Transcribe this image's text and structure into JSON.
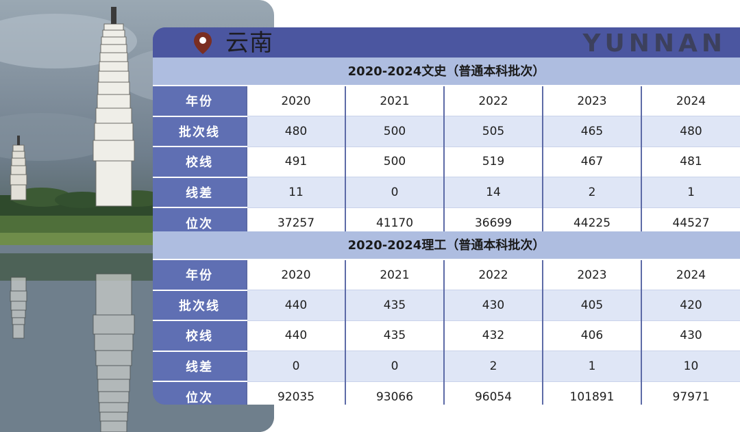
{
  "header": {
    "province": "云南",
    "province_en": "YUNNAN"
  },
  "icons": {
    "location": "location-pin-icon"
  },
  "sections": [
    {
      "title": "2020-2024文史（普通本科批次）",
      "rows": [
        {
          "label": "年份",
          "values": [
            "2020",
            "2021",
            "2022",
            "2023",
            "2024"
          ]
        },
        {
          "label": "批次线",
          "values": [
            "480",
            "500",
            "505",
            "465",
            "480"
          ]
        },
        {
          "label": "校线",
          "values": [
            "491",
            "500",
            "519",
            "467",
            "481"
          ]
        },
        {
          "label": "线差",
          "values": [
            "11",
            "0",
            "14",
            "2",
            "1"
          ]
        },
        {
          "label": "位次",
          "values": [
            "37257",
            "41170",
            "36699",
            "44225",
            "44527"
          ]
        }
      ]
    },
    {
      "title": "2020-2024理工（普通本科批次）",
      "rows": [
        {
          "label": "年份",
          "values": [
            "2020",
            "2021",
            "2022",
            "2023",
            "2024"
          ]
        },
        {
          "label": "批次线",
          "values": [
            "440",
            "435",
            "430",
            "405",
            "420"
          ]
        },
        {
          "label": "校线",
          "values": [
            "440",
            "435",
            "432",
            "406",
            "430"
          ]
        },
        {
          "label": "线差",
          "values": [
            "0",
            "0",
            "2",
            "1",
            "10"
          ]
        },
        {
          "label": "位次",
          "values": [
            "92035",
            "93066",
            "96054",
            "101891",
            "97971"
          ]
        }
      ]
    }
  ],
  "colors": {
    "header_bg": "#4b56a0",
    "label_bg": "#5f6fb3",
    "section_title_bg": "#aebde0",
    "row_alt_bg": "#dfe6f6"
  }
}
